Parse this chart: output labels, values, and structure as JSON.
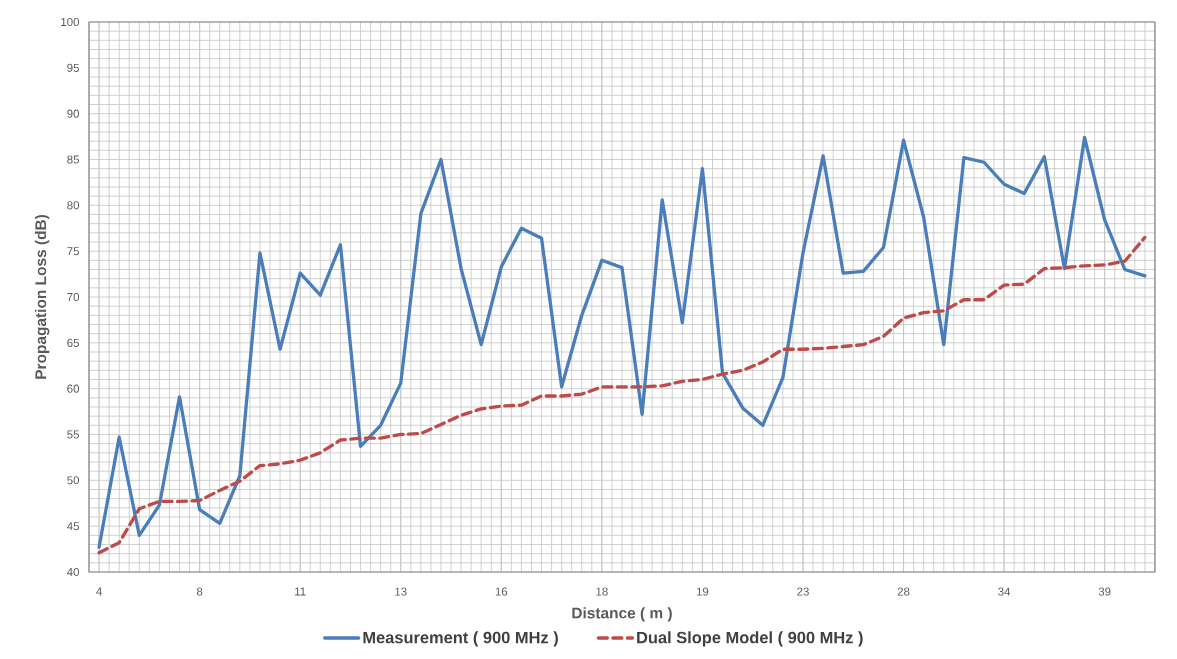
{
  "chart_data": {
    "type": "line",
    "xlabel": "Distance ( m )",
    "ylabel": "Propagation Loss (dB)",
    "categories": [
      "4",
      null,
      null,
      null,
      null,
      "8",
      null,
      null,
      null,
      null,
      "11",
      null,
      null,
      null,
      null,
      "13",
      null,
      null,
      null,
      null,
      "16",
      null,
      null,
      null,
      null,
      "18",
      null,
      null,
      null,
      null,
      "19",
      null,
      null,
      null,
      null,
      "23",
      null,
      null,
      null,
      null,
      "28",
      null,
      null,
      null,
      null,
      "34",
      null,
      null,
      null,
      null,
      "39",
      null,
      null
    ],
    "series": [
      {
        "name": "Measurement ( 900 MHz )",
        "color": "#4a7ebb",
        "line_style": "solid",
        "values": [
          42.7,
          54.7,
          44.0,
          47.3,
          59.1,
          46.8,
          45.3,
          50.5,
          74.8,
          64.3,
          72.6,
          70.2,
          75.7,
          53.7,
          56.0,
          60.6,
          79.1,
          85.0,
          73.1,
          64.8,
          73.3,
          77.5,
          76.4,
          60.2,
          68.0,
          74.0,
          73.2,
          57.2,
          80.6,
          67.2,
          84.0,
          61.7,
          57.9,
          56.0,
          61.2,
          74.8,
          85.4,
          72.6,
          72.8,
          75.4,
          87.1,
          78.7,
          64.8,
          85.2,
          84.7,
          82.3,
          81.3,
          85.3,
          73.1,
          87.4,
          78.4,
          73.0,
          72.3
        ]
      },
      {
        "name": "Dual Slope Model ( 900 MHz )",
        "color": "#be4b48",
        "line_style": "dashed",
        "values": [
          42.1,
          43.2,
          46.9,
          47.7,
          47.7,
          47.8,
          48.9,
          49.9,
          51.6,
          51.8,
          52.2,
          53.0,
          54.4,
          54.6,
          54.6,
          55.0,
          55.1,
          56.1,
          57.1,
          57.8,
          58.1,
          58.2,
          59.2,
          59.2,
          59.4,
          60.2,
          60.2,
          60.2,
          60.3,
          60.8,
          61.0,
          61.6,
          62.0,
          62.9,
          64.3,
          64.3,
          64.4,
          64.6,
          64.8,
          65.7,
          67.7,
          68.3,
          68.5,
          69.7,
          69.7,
          71.3,
          71.4,
          73.1,
          73.2,
          73.4,
          73.5,
          73.9,
          76.5
        ]
      }
    ],
    "ylim": [
      40,
      100
    ],
    "yticks": [
      40,
      45,
      50,
      55,
      60,
      65,
      70,
      75,
      80,
      85,
      90,
      95,
      100
    ],
    "grid": true,
    "legend": "bottom"
  }
}
